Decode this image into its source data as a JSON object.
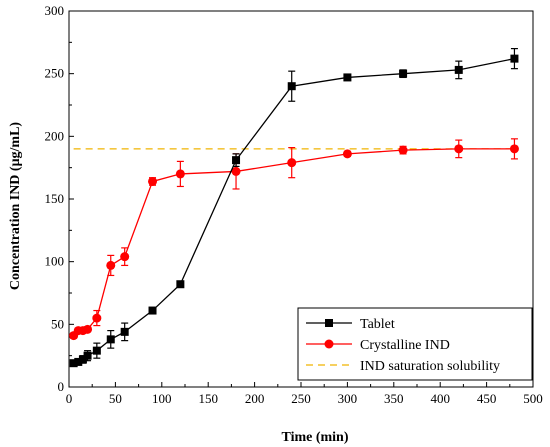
{
  "chart_data": {
    "type": "line",
    "xlabel": "Time (min)",
    "ylabel": "Concentration IND (μg/mL)",
    "xlim": [
      0,
      500
    ],
    "ylim": [
      0,
      300
    ],
    "xticks": [
      0,
      50,
      100,
      150,
      200,
      250,
      300,
      350,
      400,
      450,
      500
    ],
    "yticks": [
      0,
      50,
      100,
      150,
      200,
      250,
      300
    ],
    "xtick_labels": [
      "0",
      "50",
      "100",
      "150",
      "200",
      "250",
      "300",
      "350",
      "400",
      "450",
      "500"
    ],
    "ytick_labels": [
      "0",
      "50",
      "100",
      "150",
      "200",
      "250",
      "300"
    ],
    "grid": false,
    "legend_position": "bottom-right",
    "series": [
      {
        "name": "Tablet",
        "color": "#000000",
        "marker": "square",
        "x": [
          5,
          10,
          15,
          20,
          30,
          45,
          60,
          90,
          120,
          180,
          240,
          300,
          360,
          420,
          480
        ],
        "y": [
          19,
          20,
          22,
          25,
          29,
          38,
          44,
          61,
          82,
          181,
          240,
          247,
          250,
          253,
          262
        ],
        "err": [
          2,
          2,
          3,
          4,
          6,
          7,
          7,
          2,
          2,
          5,
          12,
          2,
          3,
          7,
          8
        ]
      },
      {
        "name": "Crystalline IND",
        "color": "#ff0000",
        "marker": "circle",
        "x": [
          5,
          10,
          15,
          20,
          30,
          45,
          60,
          90,
          120,
          180,
          240,
          300,
          360,
          420,
          480
        ],
        "y": [
          41,
          45,
          45,
          46,
          55,
          97,
          104,
          164,
          170,
          172,
          179,
          186,
          189,
          190,
          190
        ],
        "err": [
          2,
          2,
          2,
          2,
          6,
          8,
          7,
          3,
          10,
          14,
          12,
          2,
          3,
          7,
          8
        ]
      },
      {
        "name": "IND saturation solubility",
        "color": "#f0b400",
        "style": "dashed",
        "y_constant": 190
      }
    ]
  }
}
